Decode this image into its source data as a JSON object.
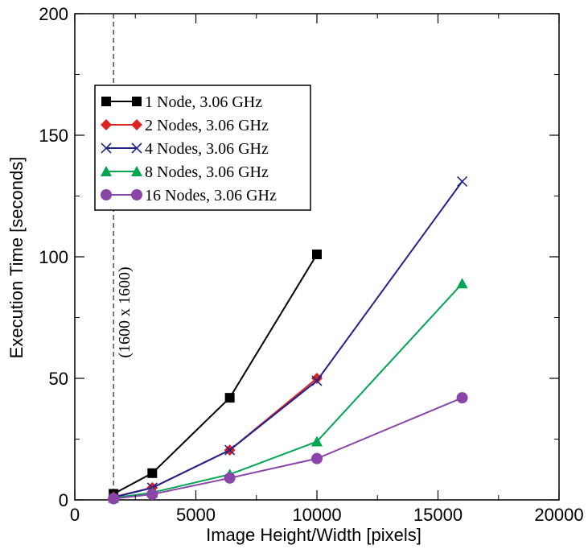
{
  "chart_data": {
    "type": "line",
    "xlabel": "Image Height/Width [pixels]",
    "ylabel": "Execution Time [seconds]",
    "xlim": [
      0,
      20000
    ],
    "ylim": [
      0,
      200
    ],
    "xticks": [
      0,
      5000,
      10000,
      15000,
      20000
    ],
    "yticks": [
      0,
      50,
      100,
      150,
      200
    ],
    "grid": false,
    "legend_position": "upper-left",
    "annotation": {
      "text": "(1600 x 1600)",
      "x": 1600
    },
    "series": [
      {
        "name": "1 Node, 3.06 GHz",
        "color": "#000000",
        "marker": "square",
        "x": [
          1600,
          3200,
          6400,
          10000
        ],
        "y": [
          2.5,
          11,
          42,
          101
        ]
      },
      {
        "name": "2 Nodes, 3.06 GHz",
        "color": "#dd2222",
        "marker": "diamond",
        "x": [
          1600,
          3200,
          6400,
          10000
        ],
        "y": [
          1.2,
          5,
          20.5,
          50
        ]
      },
      {
        "name": "4 Nodes, 3.06 GHz",
        "color": "#23238e",
        "marker": "x",
        "x": [
          1600,
          3200,
          6400,
          10000,
          16000
        ],
        "y": [
          1,
          5,
          20.5,
          49,
          131
        ]
      },
      {
        "name": "8 Nodes, 3.06 GHz",
        "color": "#00a651",
        "marker": "triangle",
        "x": [
          1600,
          3200,
          6400,
          10000,
          16000
        ],
        "y": [
          0.8,
          3,
          10.5,
          24,
          89
        ]
      },
      {
        "name": "16 Nodes, 3.06 GHz",
        "color": "#8b44a8",
        "marker": "circle",
        "x": [
          1600,
          3200,
          6400,
          10000,
          16000
        ],
        "y": [
          0.5,
          2.3,
          9,
          17,
          42
        ]
      }
    ]
  }
}
